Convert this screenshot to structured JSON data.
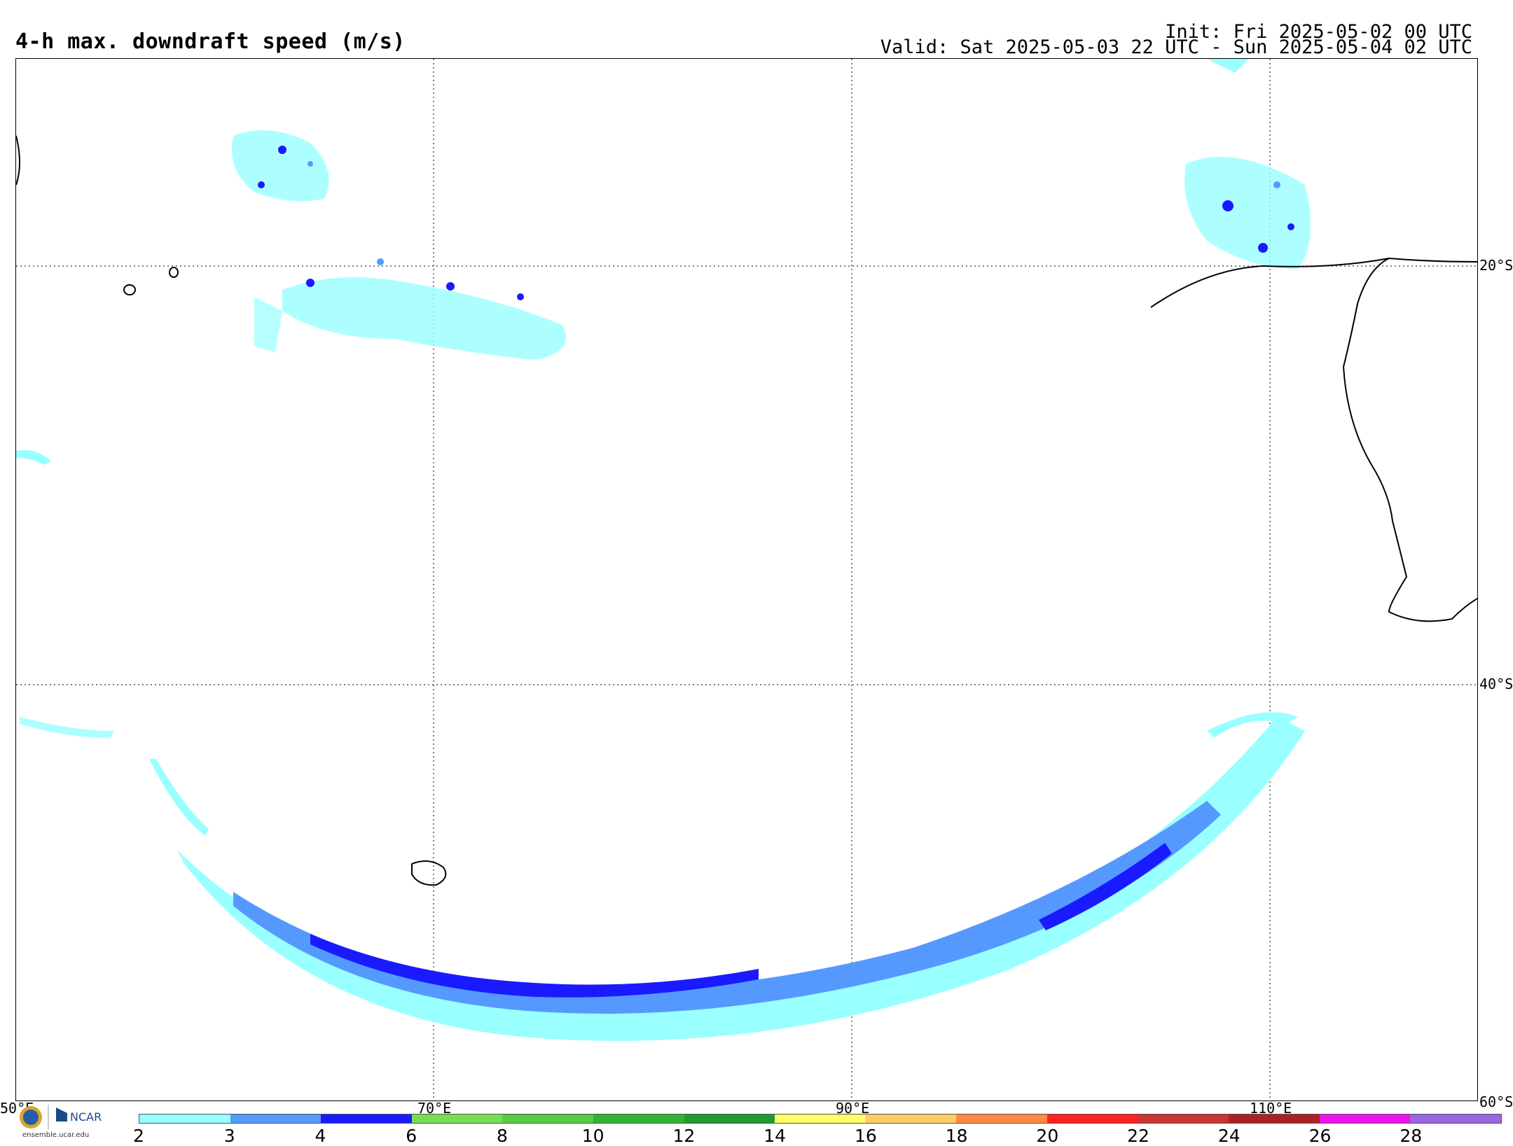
{
  "header": {
    "title": "4-h max. downdraft speed (m/s)",
    "init": "Init: Fri 2025-05-02 00 UTC",
    "valid": "Valid: Sat 2025-05-03 22 UTC - Sun 2025-05-04 02 UTC"
  },
  "map": {
    "lat_labels": [
      "20°S",
      "40°S",
      "60°S"
    ],
    "lon_labels": [
      "50°E",
      "70°E",
      "90°E",
      "110°E"
    ]
  },
  "colorbar": {
    "ticks": [
      "2",
      "3",
      "4",
      "6",
      "8",
      "10",
      "12",
      "14",
      "16",
      "18",
      "20",
      "22",
      "24",
      "26",
      "28"
    ],
    "colors": [
      "#99ffff",
      "#5599ff",
      "#1a1aff",
      "#77dd55",
      "#55cc44",
      "#33b333",
      "#229933",
      "#ffff66",
      "#ffcc66",
      "#ff8844",
      "#ff2222",
      "#cc3333",
      "#aa2222",
      "#ee11ee",
      "#9966dd"
    ]
  },
  "logo": {
    "org": "NCAR",
    "url": "ensemble.ucar.edu"
  }
}
